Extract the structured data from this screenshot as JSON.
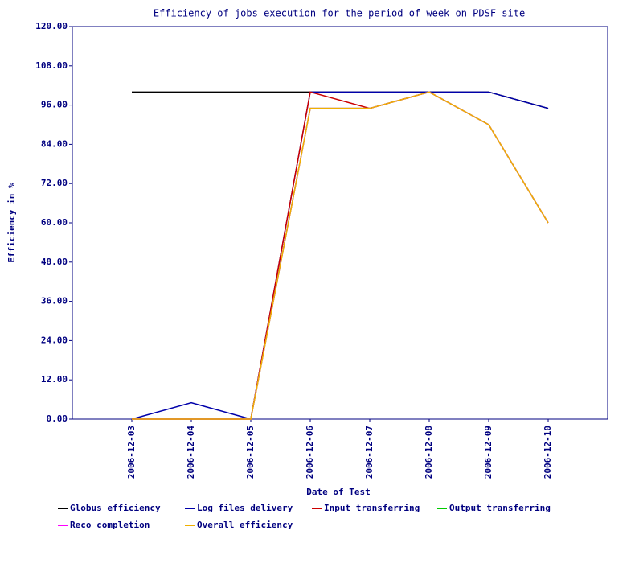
{
  "chart_data": {
    "type": "line",
    "title": "Efficiency of jobs execution for the period of week on  PDSF site",
    "x_label": "Date of Test",
    "y_label": "Efficiency in %",
    "categories": [
      "2006-12-03",
      "2006-12-04",
      "2006-12-05",
      "2006-12-06",
      "2006-12-07",
      "2006-12-08",
      "2006-12-09",
      "2006-12-10"
    ],
    "series": [
      {
        "name": "Globus efficiency",
        "color": "#000000",
        "values": [
          100,
          100,
          100,
          100,
          100,
          100,
          100,
          95
        ]
      },
      {
        "name": "Log files delivery",
        "color": "#0000aa",
        "values": [
          0,
          5,
          0,
          100,
          100,
          100,
          100,
          95
        ]
      },
      {
        "name": "Input transferring",
        "color": "#cc0000",
        "values": [
          0,
          0,
          0,
          100,
          95,
          100,
          90,
          60
        ]
      },
      {
        "name": "Output transferring",
        "color": "#00cc00",
        "values": [
          0,
          0,
          0,
          95,
          95,
          100,
          90,
          60
        ]
      },
      {
        "name": "Reco completion",
        "color": "#ff00ff",
        "values": [
          0,
          0,
          0,
          95,
          95,
          100,
          90,
          60
        ]
      },
      {
        "name": "Overall efficiency",
        "color": "#f0b000",
        "values": [
          0,
          0,
          0,
          95,
          95,
          100,
          90,
          60
        ]
      }
    ],
    "ylim": [
      0,
      120
    ],
    "yticks": [
      {
        "value": 0,
        "label": "0.00"
      },
      {
        "value": 12,
        "label": "12.00"
      },
      {
        "value": 24,
        "label": "24.00"
      },
      {
        "value": 36,
        "label": "36.00"
      },
      {
        "value": 48,
        "label": "48.00"
      },
      {
        "value": 60,
        "label": "60.00"
      },
      {
        "value": 72,
        "label": "72.00"
      },
      {
        "value": 84,
        "label": "84.00"
      },
      {
        "value": 96,
        "label": "96.00"
      },
      {
        "value": 108,
        "label": "108.00"
      },
      {
        "value": 120,
        "label": "120.00"
      }
    ],
    "grid": false
  }
}
